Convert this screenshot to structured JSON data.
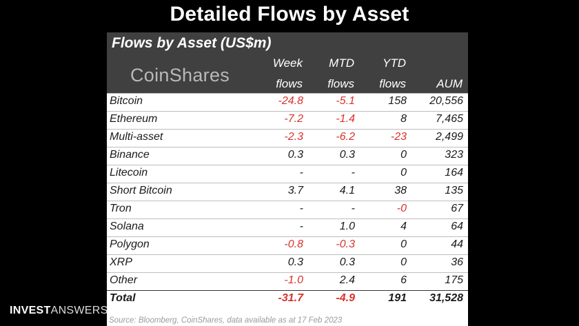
{
  "slide_title": "Detailed Flows by Asset",
  "brand": {
    "bold": "INVEST",
    "light": "ANSWERS"
  },
  "table": {
    "title": "Flows by Asset (US$m)",
    "logo": "CoinShares",
    "columns": [
      {
        "line1": "Week",
        "line2": "flows"
      },
      {
        "line1": "MTD",
        "line2": "flows"
      },
      {
        "line1": "YTD",
        "line2": "flows"
      },
      {
        "line1": "",
        "line2": "AUM"
      }
    ],
    "source": "Source: Bloomberg, CoinShares, data available as at 17 Feb 2023"
  },
  "colors": {
    "negative": "#d9312b",
    "header_bg": "#404040"
  },
  "chart_data": {
    "type": "table",
    "title": "Flows by Asset (US$m)",
    "columns": [
      "Week flows",
      "MTD flows",
      "YTD flows",
      "AUM"
    ],
    "rows": [
      {
        "asset": "Bitcoin",
        "week": "-24.8",
        "mtd": "-5.1",
        "ytd": "158",
        "aum": "20,556"
      },
      {
        "asset": "Ethereum",
        "week": "-7.2",
        "mtd": "-1.4",
        "ytd": "8",
        "aum": "7,465"
      },
      {
        "asset": "Multi-asset",
        "week": "-2.3",
        "mtd": "-6.2",
        "ytd": "-23",
        "aum": "2,499"
      },
      {
        "asset": "Binance",
        "week": "0.3",
        "mtd": "0.3",
        "ytd": "0",
        "aum": "323"
      },
      {
        "asset": "Litecoin",
        "week": "-",
        "mtd": "-",
        "ytd": "0",
        "aum": "164"
      },
      {
        "asset": "Short Bitcoin",
        "week": "3.7",
        "mtd": "4.1",
        "ytd": "38",
        "aum": "135"
      },
      {
        "asset": "Tron",
        "week": "-",
        "mtd": "-",
        "ytd": "-0",
        "aum": "67"
      },
      {
        "asset": "Solana",
        "week": "-",
        "mtd": "1.0",
        "ytd": "4",
        "aum": "64"
      },
      {
        "asset": "Polygon",
        "week": "-0.8",
        "mtd": "-0.3",
        "ytd": "0",
        "aum": "44"
      },
      {
        "asset": "XRP",
        "week": "0.3",
        "mtd": "0.3",
        "ytd": "0",
        "aum": "36"
      },
      {
        "asset": "Other",
        "week": "-1.0",
        "mtd": "2.4",
        "ytd": "6",
        "aum": "175"
      }
    ],
    "total": {
      "asset": "Total",
      "week": "-31.7",
      "mtd": "-4.9",
      "ytd": "191",
      "aum": "31,528"
    }
  }
}
